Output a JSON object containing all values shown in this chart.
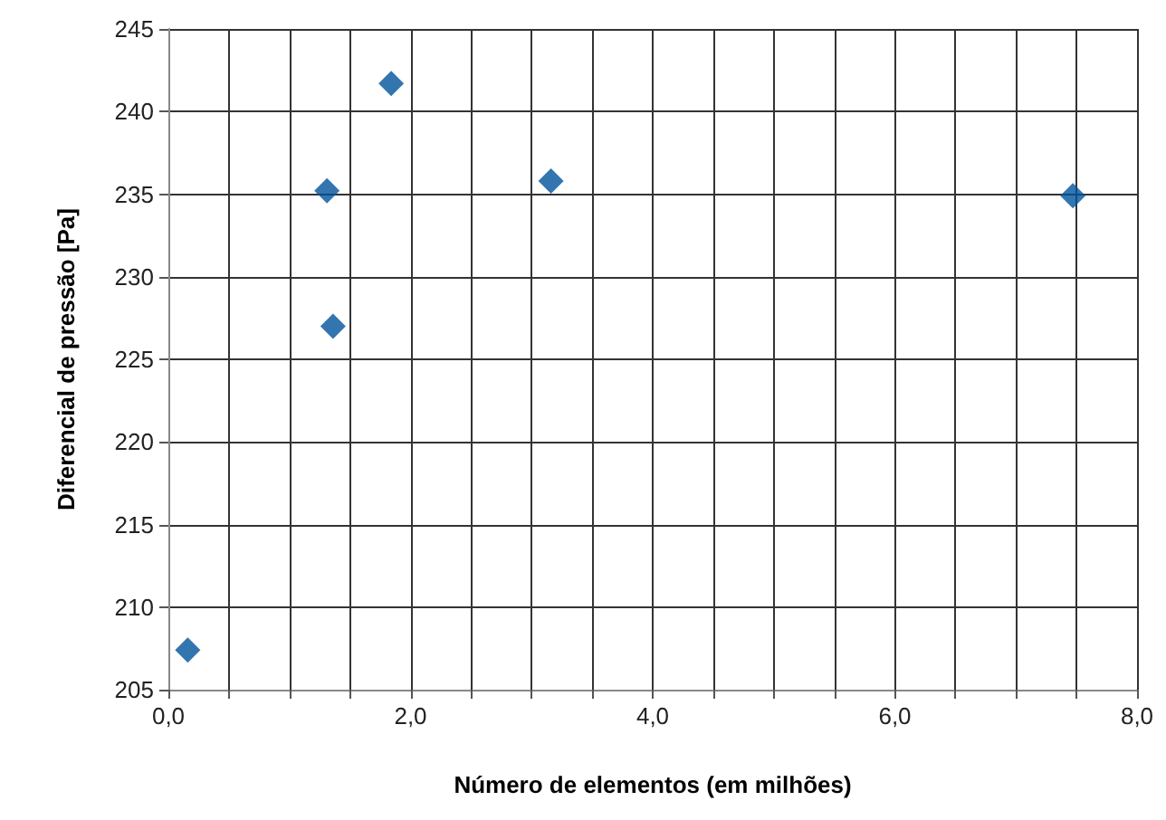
{
  "chart_data": {
    "type": "scatter",
    "xlabel": "Número de elementos (em milhões)",
    "ylabel": "Diferencial de pressão [Pa]",
    "x": [
      0.16,
      1.31,
      1.36,
      1.84,
      3.16,
      7.47
    ],
    "series": [
      {
        "color": "#00539b",
        "values": [
          207.4,
          235.2,
          227.0,
          241.7,
          235.8,
          234.9
        ]
      }
    ],
    "xlim": [
      0,
      8
    ],
    "xticks": [
      {
        "value": 0,
        "label": "0,0"
      },
      {
        "value": 0.5,
        "label": null
      },
      {
        "value": 1,
        "label": null
      },
      {
        "value": 1.5,
        "label": null
      },
      {
        "value": 2,
        "label": "2,0"
      },
      {
        "value": 2.5,
        "label": null
      },
      {
        "value": 3,
        "label": null
      },
      {
        "value": 3.5,
        "label": null
      },
      {
        "value": 4,
        "label": "4,0"
      },
      {
        "value": 4.5,
        "label": null
      },
      {
        "value": 5,
        "label": null
      },
      {
        "value": 5.5,
        "label": null
      },
      {
        "value": 6,
        "label": "6,0"
      },
      {
        "value": 6.5,
        "label": null
      },
      {
        "value": 7,
        "label": null
      },
      {
        "value": 7.5,
        "label": null
      },
      {
        "value": 8,
        "label": "8,0"
      }
    ],
    "ylim": [
      205,
      245
    ],
    "yticks": [
      205,
      210,
      215,
      220,
      225,
      230,
      235,
      240,
      245
    ],
    "grid": true,
    "marker": "diamond"
  }
}
